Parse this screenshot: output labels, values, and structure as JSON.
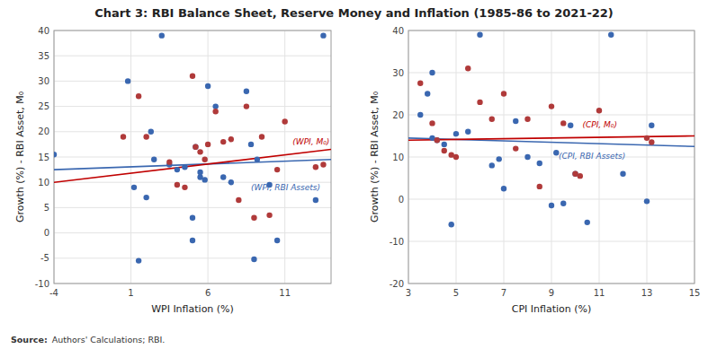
{
  "chart_data": [
    {
      "type": "scatter",
      "title": "Chart 3: RBI Balance Sheet, Reserve Money and Inflation (1985-86 to 2021-22)",
      "source_label": "Source:",
      "source": "Authors' Calculations; RBI.",
      "x_label": "WPI Inflation (%)",
      "y_label": "Growth (%) - RBI Asset, M₀",
      "xlim": [
        -4,
        14
      ],
      "ylim": [
        -10,
        40
      ],
      "xticks": [
        -4,
        1,
        6,
        11
      ],
      "yticks": [
        -10,
        -5,
        0,
        5,
        10,
        15,
        20,
        25,
        30,
        35,
        40
      ],
      "grid": true,
      "series": [
        {
          "type": "scatter",
          "color": "#3a67b0",
          "x": [
            -4,
            0.8,
            1.2,
            1.5,
            2.0,
            2.3,
            2.5,
            3.0,
            3.5,
            4.0,
            4.5,
            5.0,
            5.0,
            5.2,
            5.5,
            5.5,
            5.8,
            6.0,
            6.5,
            7.0,
            7.5,
            8.5,
            8.8,
            9.0,
            9.2,
            10.0,
            10.5,
            13.0,
            13.5
          ],
          "values": [
            15.5,
            30.0,
            9.0,
            -5.5,
            7.0,
            20.0,
            14.5,
            39.0,
            13.5,
            12.5,
            13.0,
            -1.5,
            3.0,
            17.0,
            11.0,
            12.0,
            10.5,
            29.0,
            25.0,
            11.0,
            10.0,
            28.0,
            17.5,
            -5.2,
            14.5,
            9.5,
            -1.5,
            6.5,
            39.0
          ]
        },
        {
          "type": "scatter",
          "color": "#b03a3a",
          "x": [
            0.5,
            1.5,
            2.0,
            3.5,
            4.0,
            4.5,
            5.0,
            5.2,
            5.5,
            5.8,
            6.0,
            6.5,
            7.0,
            7.5,
            8.0,
            8.5,
            9.0,
            9.5,
            10.0,
            10.5,
            11.0,
            13.0,
            13.5
          ],
          "values": [
            19.0,
            27.0,
            19.0,
            14.0,
            9.5,
            9.0,
            31.0,
            17.0,
            16.0,
            14.5,
            17.5,
            24.0,
            18.0,
            18.5,
            6.5,
            25.0,
            3.0,
            19.0,
            3.5,
            12.5,
            22.0,
            13.0,
            13.5
          ]
        },
        {
          "type": "line",
          "color": "#3a67b0",
          "x": [
            -4,
            14
          ],
          "values": [
            12.5,
            14.5
          ]
        },
        {
          "type": "line",
          "color": "#c00000",
          "x": [
            -4,
            14
          ],
          "values": [
            10.0,
            16.5
          ]
        }
      ],
      "annotations": [
        {
          "text": "(WPI, M₀)",
          "x": 11.5,
          "y": 17.5,
          "color": "#c00000"
        },
        {
          "text": "(WPI, RBI Assets)",
          "x": 8.8,
          "y": 8.5,
          "color": "#3a67b0"
        }
      ]
    },
    {
      "type": "scatter",
      "x_label": "CPI Inflation (%)",
      "y_label": "Growth (%) - RBI Asset, M₀",
      "xlim": [
        3,
        15
      ],
      "ylim": [
        -20,
        40
      ],
      "xticks": [
        3,
        5,
        7,
        9,
        11,
        13,
        15
      ],
      "yticks": [
        -20,
        -10,
        0,
        10,
        20,
        30,
        40
      ],
      "grid": true,
      "series": [
        {
          "type": "scatter",
          "color": "#3a67b0",
          "x": [
            3.5,
            3.8,
            4.0,
            4.0,
            4.2,
            4.5,
            4.8,
            5.0,
            5.5,
            6.0,
            6.5,
            6.8,
            7.0,
            7.5,
            8.0,
            8.5,
            9.0,
            9.2,
            9.5,
            9.8,
            10.0,
            10.5,
            11.5,
            12.0,
            13.0,
            13.2
          ],
          "values": [
            20.0,
            25.0,
            14.5,
            30.0,
            14.0,
            13.0,
            -6.0,
            15.5,
            16.0,
            39.0,
            8.0,
            9.5,
            2.5,
            18.5,
            10.0,
            8.5,
            -1.5,
            11.0,
            -1.0,
            17.5,
            6.0,
            -5.5,
            39.0,
            6.0,
            -0.5,
            17.5
          ]
        },
        {
          "type": "scatter",
          "color": "#b03a3a",
          "x": [
            3.5,
            4.0,
            4.2,
            4.5,
            4.8,
            5.0,
            5.5,
            6.0,
            6.5,
            7.0,
            7.5,
            8.0,
            8.5,
            9.0,
            9.5,
            10.0,
            10.2,
            11.0,
            13.0,
            13.2
          ],
          "values": [
            27.5,
            18.0,
            14.0,
            11.5,
            10.5,
            10.0,
            31.0,
            23.0,
            19.0,
            25.0,
            12.0,
            19.0,
            3.0,
            22.0,
            18.0,
            6.0,
            5.5,
            21.0,
            14.5,
            13.5
          ]
        },
        {
          "type": "line",
          "color": "#3a67b0",
          "x": [
            3,
            15
          ],
          "values": [
            14.5,
            12.5
          ]
        },
        {
          "type": "line",
          "color": "#c00000",
          "x": [
            3,
            15
          ],
          "values": [
            14.0,
            15.0
          ]
        }
      ],
      "annotations": [
        {
          "text": "(CPI, M₀)",
          "x": 10.3,
          "y": 17.0,
          "color": "#c00000"
        },
        {
          "text": "(CPI, RBI Assets)",
          "x": 9.3,
          "y": 9.5,
          "color": "#3a67b0"
        }
      ]
    }
  ]
}
